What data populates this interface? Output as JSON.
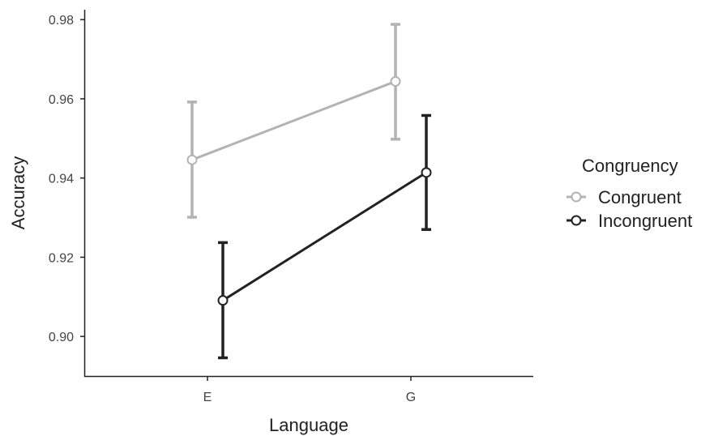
{
  "chart_data": {
    "type": "line",
    "xlabel": "Language",
    "ylabel": "Accuracy",
    "categories": [
      "E",
      "G"
    ],
    "ylim": [
      0.89,
      0.9825
    ],
    "y_ticks": [
      "0.90",
      "0.92",
      "0.94",
      "0.96",
      "0.98"
    ],
    "grid": false,
    "legend": {
      "title": "Congruency",
      "placement": "right"
    },
    "series": [
      {
        "name": "Congruent",
        "color": "#b3b3b3",
        "values": [
          0.9446,
          0.9644
        ],
        "lower": [
          0.9301,
          0.9498
        ],
        "upper": [
          0.9592,
          0.9788
        ]
      },
      {
        "name": "Incongruent",
        "color": "#222222",
        "values": [
          0.9091,
          0.9414
        ],
        "lower": [
          0.8946,
          0.927
        ],
        "upper": [
          0.9237,
          0.9558
        ]
      }
    ]
  }
}
